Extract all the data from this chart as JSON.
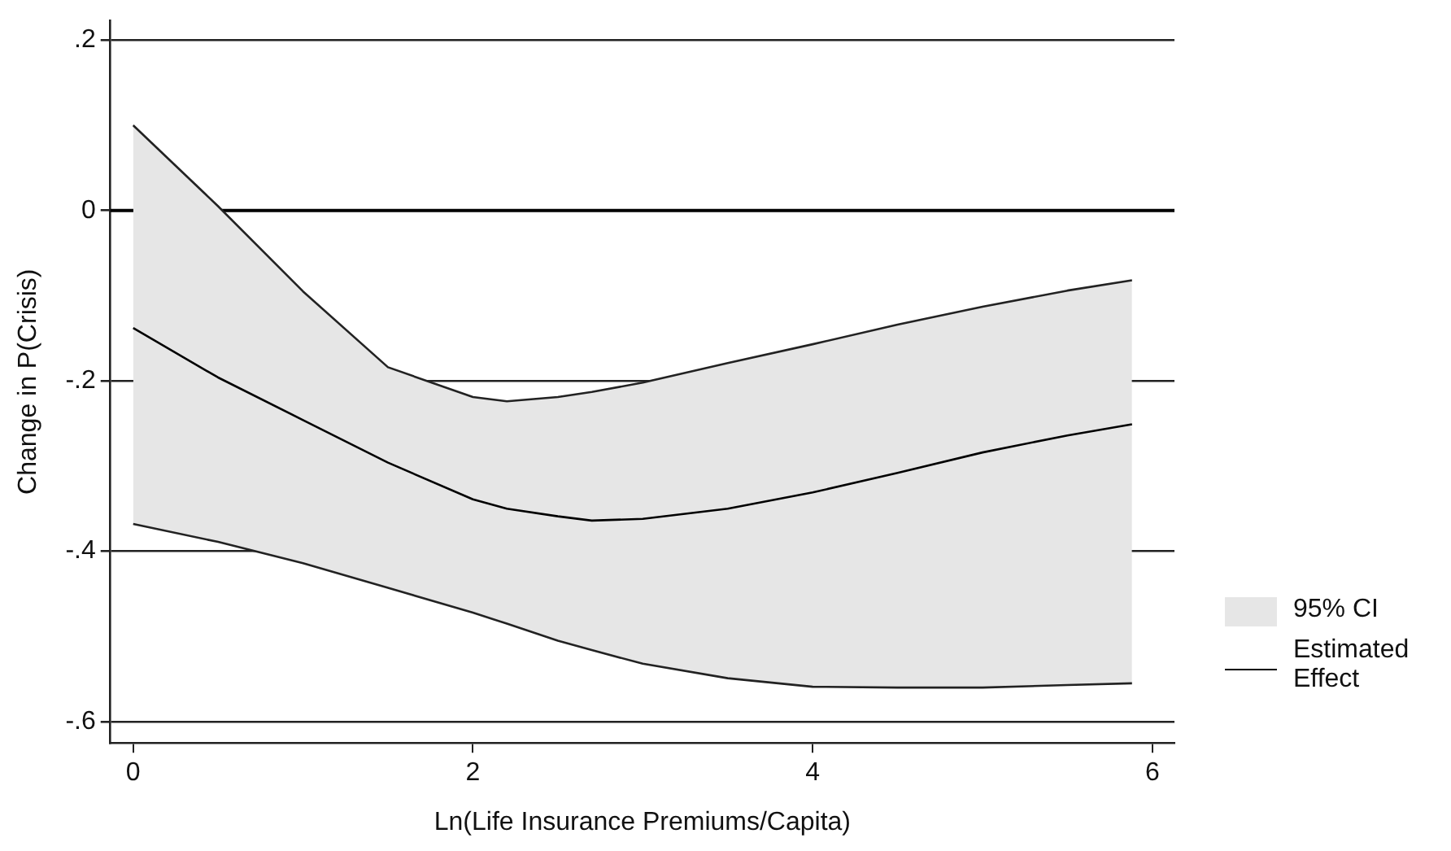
{
  "chart_data": {
    "type": "line",
    "xlabel": "Ln(Life Insurance Premiums/Capita)",
    "ylabel": "Change in P(Crisis)",
    "x": [
      0,
      0.5,
      1,
      1.5,
      2,
      2.2,
      2.5,
      2.7,
      3,
      3.5,
      4,
      4.5,
      5,
      5.5,
      5.88
    ],
    "series": [
      {
        "name": "Estimated Effect",
        "color": "#000000",
        "values": [
          -0.138,
          -0.196,
          -0.246,
          -0.296,
          -0.339,
          -0.35,
          -0.359,
          -0.364,
          -0.362,
          -0.35,
          -0.331,
          -0.308,
          -0.284,
          -0.264,
          -0.251
        ],
        "lower": [
          -0.368,
          -0.389,
          -0.414,
          -0.443,
          -0.472,
          -0.485,
          -0.505,
          -0.516,
          -0.532,
          -0.549,
          -0.559,
          -0.56,
          -0.56,
          -0.557,
          -0.555
        ],
        "upper": [
          0.1,
          0.005,
          -0.095,
          -0.184,
          -0.219,
          -0.224,
          -0.219,
          -0.213,
          -0.202,
          -0.179,
          -0.157,
          -0.134,
          -0.113,
          -0.094,
          -0.082
        ]
      },
      {
        "type": "line",
        "color": "#222222",
        "values": [
          0.1,
          0.005,
          -0.095,
          -0.184,
          -0.219,
          -0.224,
          -0.219,
          -0.213,
          -0.202,
          -0.179,
          -0.157,
          -0.134,
          -0.113,
          -0.094,
          -0.082
        ]
      },
      {
        "type": "line",
        "color": "#222222",
        "values": [
          -0.368,
          -0.389,
          -0.414,
          -0.443,
          -0.472,
          -0.485,
          -0.505,
          -0.516,
          -0.532,
          -0.549,
          -0.559,
          -0.56,
          -0.56,
          -0.557,
          -0.555
        ]
      }
    ],
    "annotations": [
      "95% CI"
    ],
    "xlim": [
      -0.134,
      6.13
    ],
    "xticks": [
      0,
      2,
      4,
      6
    ],
    "ylim": [
      -0.625,
      0.223
    ],
    "yticks": [
      {
        "value": 0.2,
        "label": ".2"
      },
      {
        "value": 0,
        "label": "0"
      },
      {
        "value": -0.2,
        "label": "-.2"
      },
      {
        "value": -0.4,
        "label": "-.4"
      },
      {
        "value": -0.6,
        "label": "-.6"
      }
    ],
    "ref_lines": [
      {
        "axis": "y",
        "value": 0
      }
    ],
    "grid": "y",
    "legend": "right",
    "marker": "none",
    "line_style": "solid"
  }
}
